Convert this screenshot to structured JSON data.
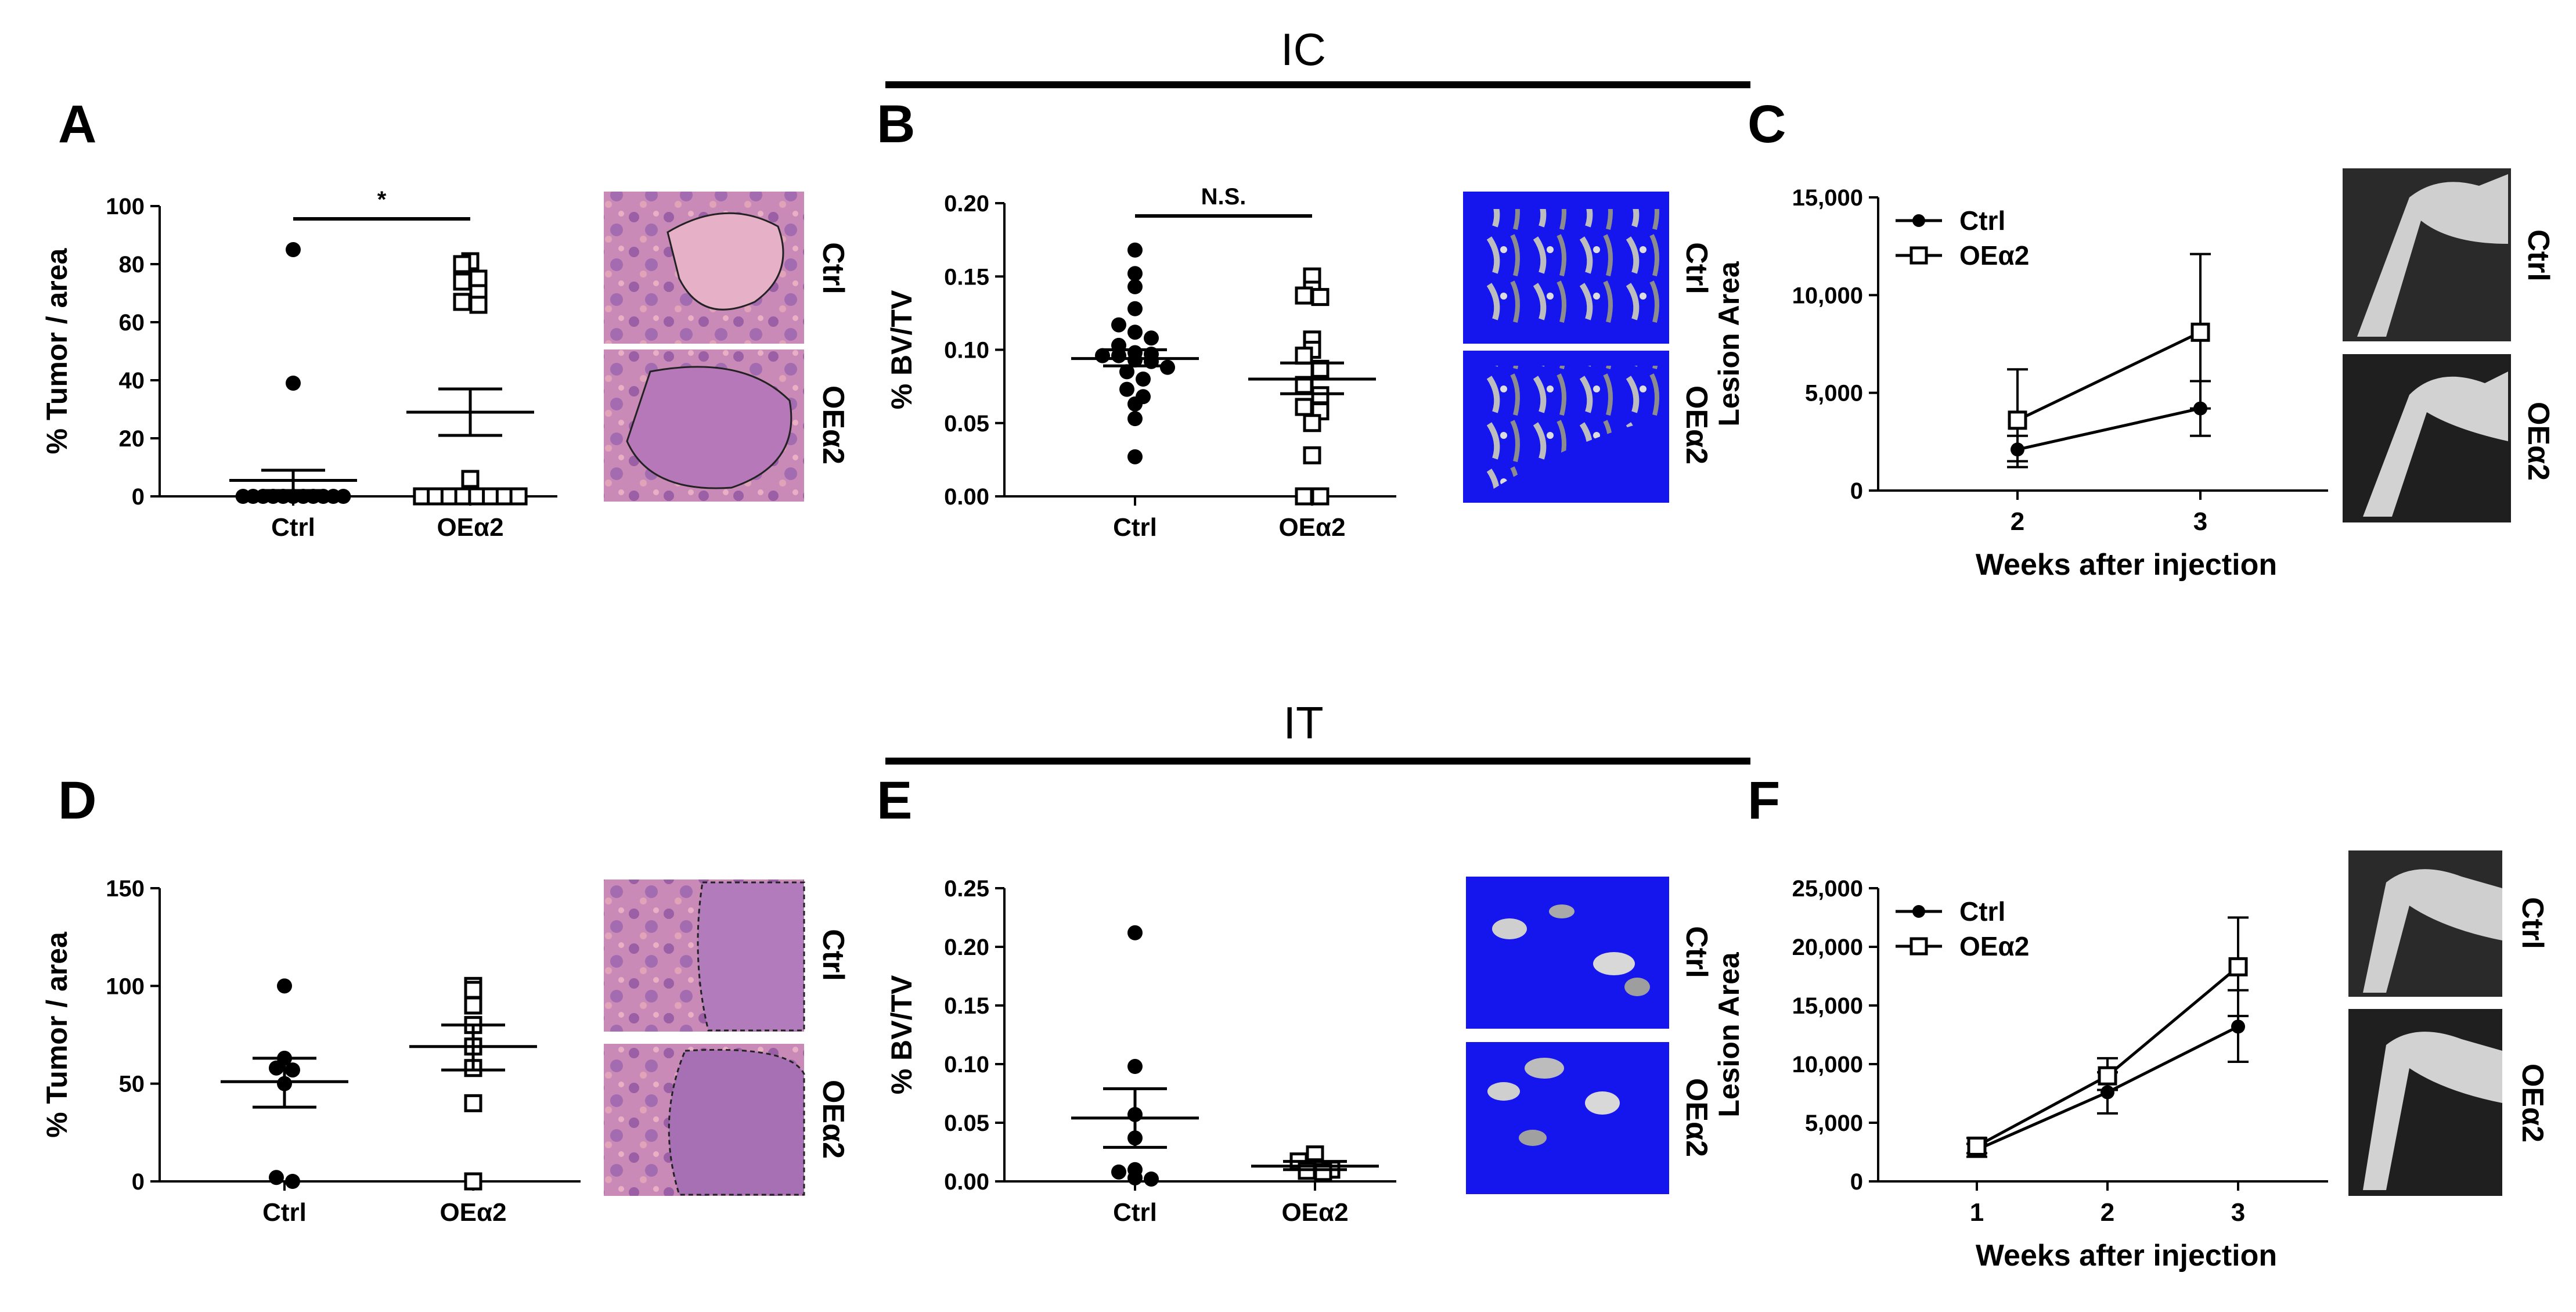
{
  "figure": {
    "sections": [
      {
        "id": "ic",
        "title": "IC"
      },
      {
        "id": "it",
        "title": "IT"
      }
    ],
    "groups": {
      "ctrl": "Ctrl",
      "oe": "OEα2"
    },
    "image_labels": {
      "ctrl": "Ctrl",
      "oe": "OEα2"
    }
  },
  "chart_data": [
    {
      "panel": "A",
      "type": "scatter",
      "title": "",
      "ylabel": "% Tumor / area",
      "ylim": [
        0,
        100
      ],
      "yticks": [
        "0",
        "20",
        "40",
        "60",
        "80",
        "100"
      ],
      "ytick_values": [
        0,
        20,
        40,
        60,
        80,
        100
      ],
      "categories": [
        "Ctrl",
        "OEα2"
      ],
      "series": [
        {
          "name": "Ctrl",
          "marker": "circle",
          "values": [
            85,
            39,
            0,
            0,
            0,
            0,
            0,
            0,
            0,
            0,
            0,
            0,
            0
          ],
          "mean": 5.5,
          "sem_low": 2,
          "sem_high": 9
        },
        {
          "name": "OEα2",
          "marker": "square",
          "values": [
            81,
            80,
            75,
            74,
            70,
            67,
            66,
            6,
            0,
            0,
            0,
            0,
            0,
            0,
            0,
            0
          ],
          "mean": 29,
          "sem_low": 21,
          "sem_high": 37
        }
      ],
      "significance": {
        "label": "*",
        "between": [
          "Ctrl",
          "OEα2"
        ]
      }
    },
    {
      "panel": "B",
      "type": "scatter",
      "title": "",
      "ylabel": "% BV/TV",
      "ylim": [
        0,
        0.2
      ],
      "yticks": [
        "0.00",
        "0.05",
        "0.10",
        "0.15",
        "0.20"
      ],
      "ytick_values": [
        0,
        0.05,
        0.1,
        0.15,
        0.2
      ],
      "categories": [
        "Ctrl",
        "OEα2"
      ],
      "series": [
        {
          "name": "Ctrl",
          "marker": "circle",
          "values": [
            0.168,
            0.152,
            0.143,
            0.128,
            0.117,
            0.112,
            0.108,
            0.103,
            0.098,
            0.097,
            0.096,
            0.096,
            0.093,
            0.092,
            0.088,
            0.085,
            0.08,
            0.073,
            0.068,
            0.063,
            0.053,
            0.027
          ],
          "mean": 0.094,
          "sem_low": 0.089,
          "sem_high": 0.1
        },
        {
          "name": "OEα2",
          "marker": "square",
          "values": [
            0.15,
            0.141,
            0.137,
            0.136,
            0.107,
            0.1,
            0.096,
            0.087,
            0.076,
            0.069,
            0.061,
            0.058,
            0.05,
            0.028,
            0.0,
            0.0
          ],
          "mean": 0.08,
          "sem_low": 0.07,
          "sem_high": 0.091
        }
      ],
      "significance": {
        "label": "N.S.",
        "between": [
          "Ctrl",
          "OEα2"
        ]
      }
    },
    {
      "panel": "C",
      "type": "line",
      "title": "",
      "xlabel": "Weeks after injection",
      "ylabel": "Lesion Area",
      "x": [
        2,
        3
      ],
      "xticks": [
        "2",
        "3"
      ],
      "ylim": [
        0,
        15000
      ],
      "yticks": [
        "0",
        "5,000",
        "10,000",
        "15,000"
      ],
      "ytick_values": [
        0,
        5000,
        10000,
        15000
      ],
      "legend_position": "top-left",
      "series": [
        {
          "name": "Ctrl",
          "marker": "circle",
          "values": [
            2100,
            4200
          ],
          "err_low": [
            1200,
            2800
          ],
          "err_high": [
            2800,
            5600
          ]
        },
        {
          "name": "OEα2",
          "marker": "square",
          "values": [
            3600,
            8100
          ],
          "err_low": [
            1500,
            4200
          ],
          "err_high": [
            6200,
            12100
          ]
        }
      ]
    },
    {
      "panel": "D",
      "type": "scatter",
      "title": "",
      "ylabel": "% Tumor / area",
      "ylim": [
        0,
        150
      ],
      "yticks": [
        "0",
        "50",
        "100",
        "150"
      ],
      "ytick_values": [
        0,
        50,
        100,
        150
      ],
      "categories": [
        "Ctrl",
        "OEα2"
      ],
      "series": [
        {
          "name": "Ctrl",
          "marker": "circle",
          "values": [
            100,
            63,
            58,
            57,
            50,
            2,
            0
          ],
          "mean": 51,
          "sem_low": 38,
          "sem_high": 63
        },
        {
          "name": "OEα2",
          "marker": "square",
          "values": [
            100,
            98,
            90,
            80,
            69,
            58,
            40,
            0
          ],
          "mean": 69,
          "sem_low": 57,
          "sem_high": 80
        }
      ]
    },
    {
      "panel": "E",
      "type": "scatter",
      "title": "",
      "ylabel": "% BV/TV",
      "ylim": [
        0,
        0.25
      ],
      "yticks": [
        "0.00",
        "0.05",
        "0.10",
        "0.15",
        "0.20",
        "0.25"
      ],
      "ytick_values": [
        0,
        0.05,
        0.1,
        0.15,
        0.2,
        0.25
      ],
      "categories": [
        "Ctrl",
        "OEα2"
      ],
      "series": [
        {
          "name": "Ctrl",
          "marker": "circle",
          "values": [
            0.212,
            0.098,
            0.057,
            0.037,
            0.01,
            0.008,
            0.003,
            0.002
          ],
          "mean": 0.054,
          "sem_low": 0.029,
          "sem_high": 0.079
        },
        {
          "name": "OEα2",
          "marker": "square",
          "values": [
            0.023,
            0.017,
            0.012,
            0.01,
            0.009,
            0.008
          ],
          "mean": 0.013,
          "sem_low": 0.01,
          "sem_high": 0.017
        }
      ]
    },
    {
      "panel": "F",
      "type": "line",
      "title": "",
      "xlabel": "Weeks after injection",
      "ylabel": "Lesion Area",
      "x": [
        1,
        2,
        3
      ],
      "xticks": [
        "1",
        "2",
        "3"
      ],
      "ylim": [
        0,
        25000
      ],
      "yticks": [
        "0",
        "5,000",
        "10,000",
        "15,000",
        "20,000",
        "25,000"
      ],
      "ytick_values": [
        0,
        5000,
        10000,
        15000,
        20000,
        25000
      ],
      "legend_position": "top-left",
      "series": [
        {
          "name": "Ctrl",
          "marker": "circle",
          "values": [
            2700,
            7600,
            13200
          ],
          "err_low": [
            2100,
            5800,
            10200
          ],
          "err_high": [
            3200,
            9300,
            16300
          ]
        },
        {
          "name": "OEα2",
          "marker": "square",
          "values": [
            3000,
            9000,
            18300
          ],
          "err_low": [
            2400,
            7800,
            14100
          ],
          "err_high": [
            3700,
            10500,
            22500
          ]
        }
      ]
    }
  ]
}
